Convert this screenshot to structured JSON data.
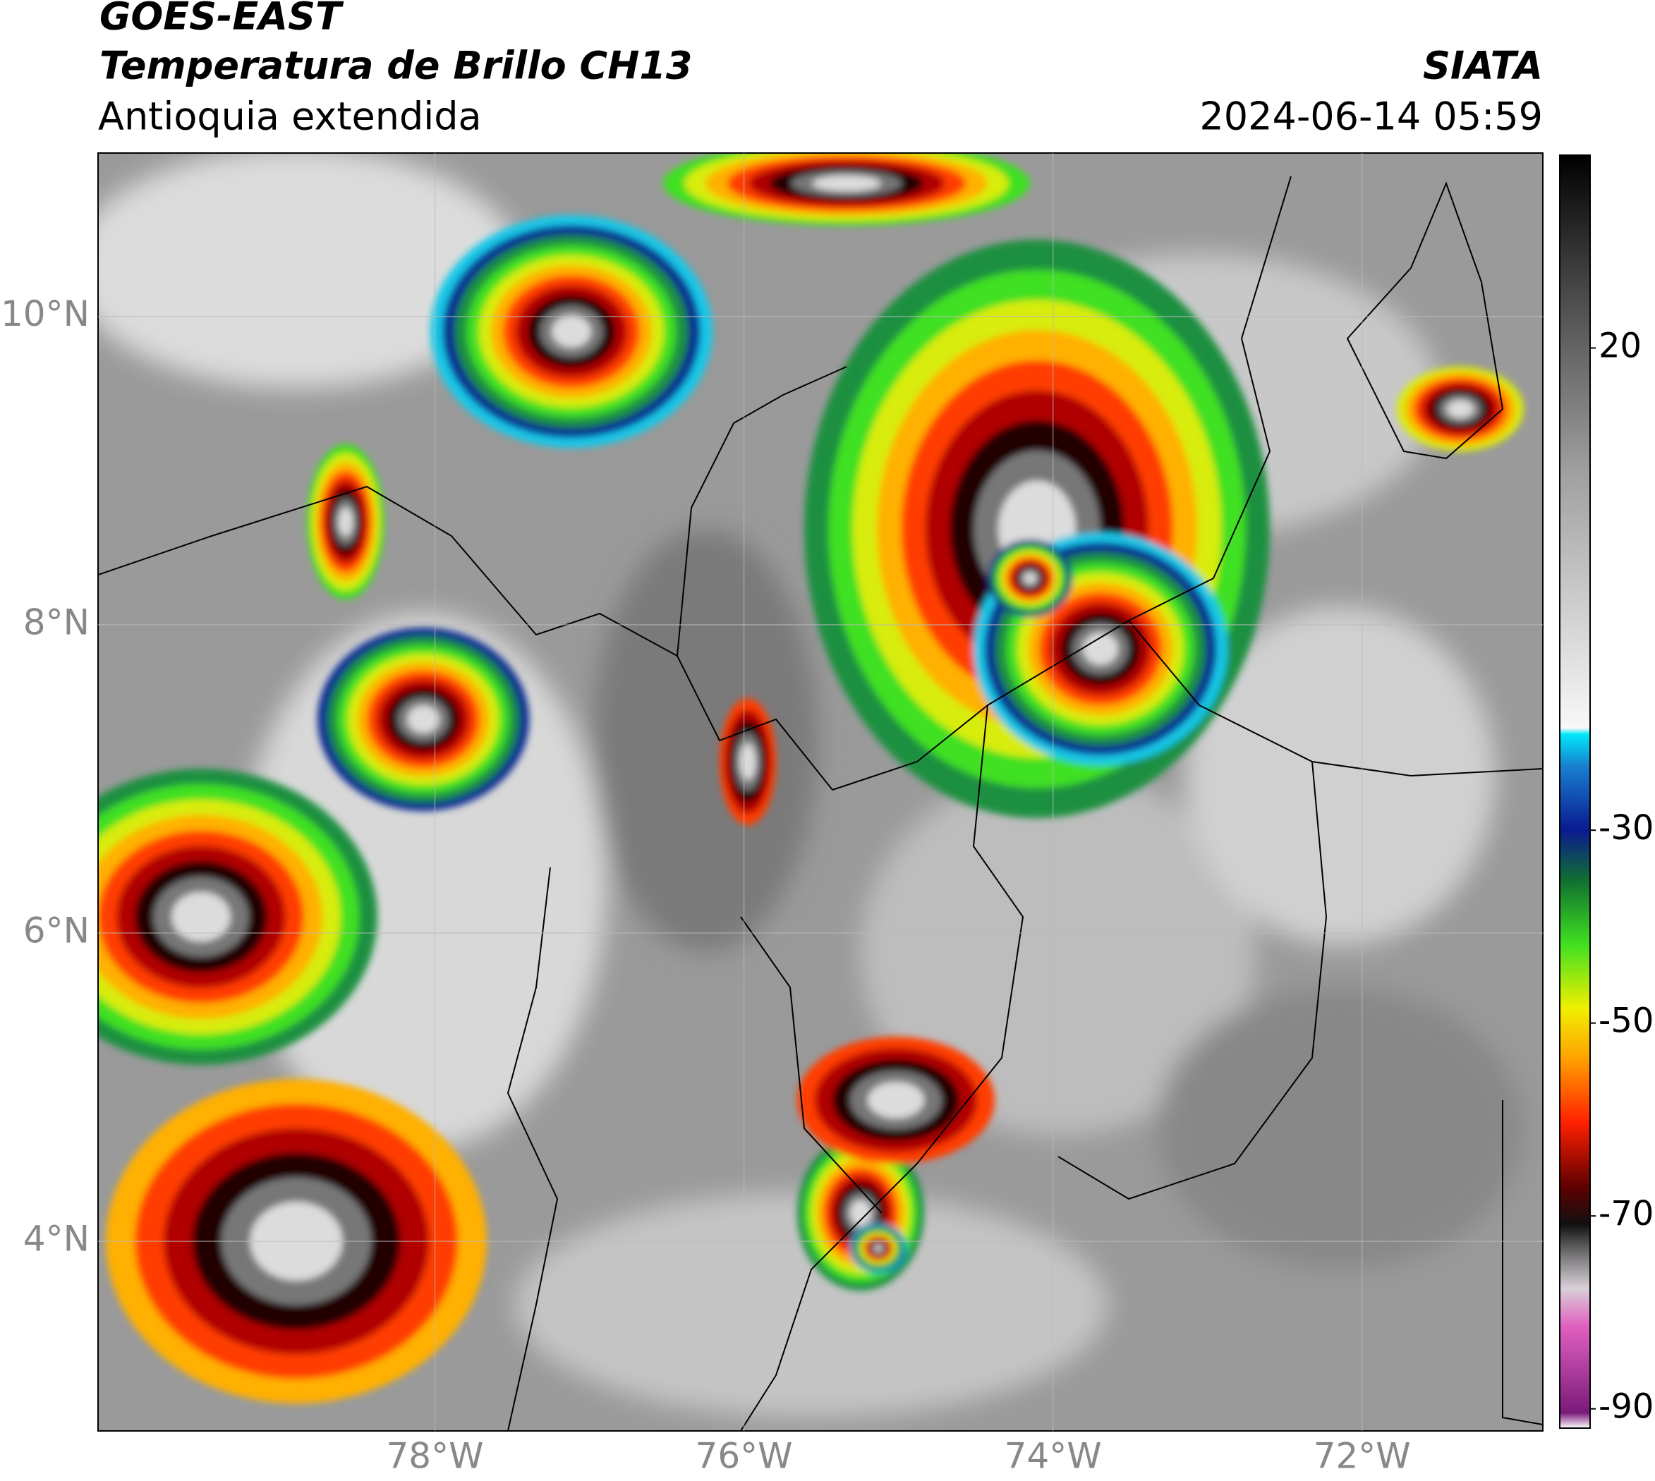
{
  "header": {
    "title": "GOES-EAST",
    "subtitle": "Temperatura de Brillo CH13",
    "region": "Antioquia extendida",
    "source": "SIATA",
    "datetime": "2024-06-14 05:59"
  },
  "map": {
    "xlim": [
      -80.18,
      -70.83
    ],
    "ylim": [
      2.77,
      11.06
    ],
    "xticks": [
      {
        "value": -78,
        "label": "78°W"
      },
      {
        "value": -76,
        "label": "76°W"
      },
      {
        "value": -74,
        "label": "74°W"
      },
      {
        "value": -72,
        "label": "72°W"
      }
    ],
    "yticks": [
      {
        "value": 10,
        "label": "10°N"
      },
      {
        "value": 8,
        "label": "8°N"
      },
      {
        "value": 6,
        "label": "6°N"
      },
      {
        "value": 4,
        "label": "4°N"
      }
    ],
    "grid": true
  },
  "colorbar": {
    "lim": [
      -92,
      40
    ],
    "ticks": [
      20,
      -30,
      -50,
      -70,
      -90
    ]
  }
}
